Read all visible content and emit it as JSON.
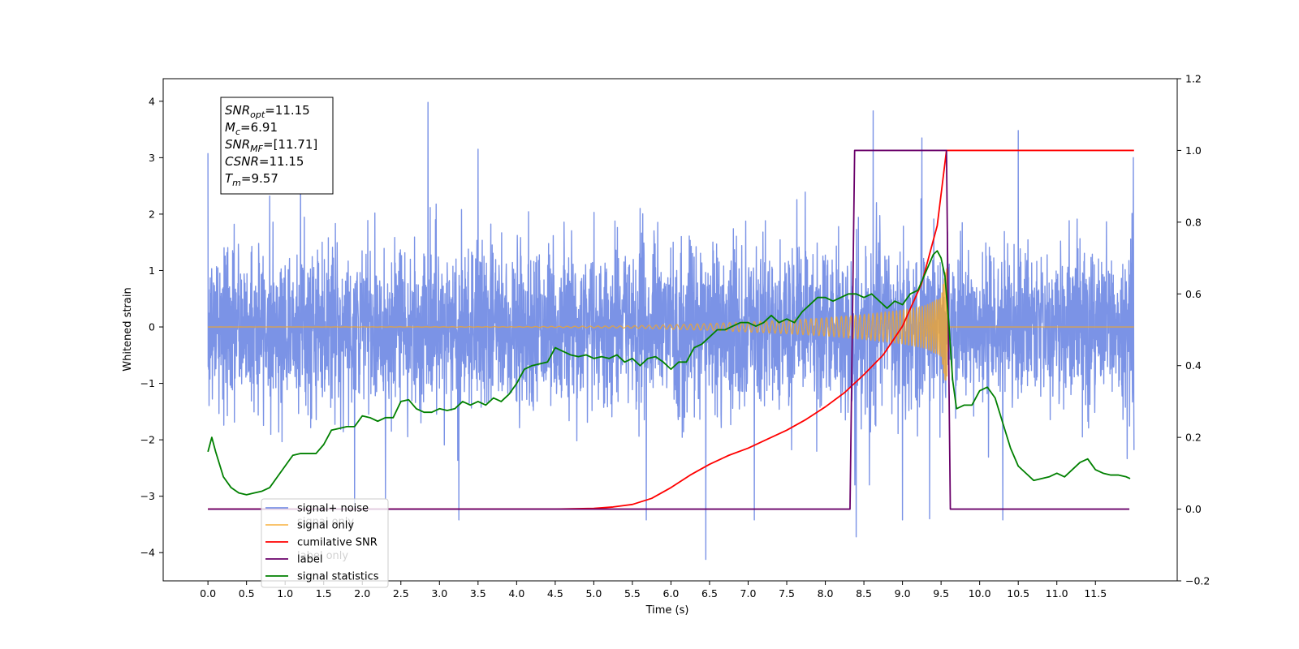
{
  "chart_data": {
    "type": "line",
    "xlabel": "Time (s)",
    "ylabel": "Whitened strain",
    "xlim": [
      -0.58,
      12.56
    ],
    "ylim_left": [
      -4.5,
      4.4
    ],
    "ylim_right": [
      -0.2,
      1.2
    ],
    "x_ticks": [
      0.0,
      0.5,
      1.0,
      1.5,
      2.0,
      2.5,
      3.0,
      3.5,
      4.0,
      4.5,
      5.0,
      5.5,
      6.0,
      6.5,
      7.0,
      7.5,
      8.0,
      8.5,
      9.0,
      9.5,
      10.0,
      10.5,
      11.0,
      11.5
    ],
    "x_tick_labels": [
      "0.0",
      "0.5",
      "1.0",
      "1.5",
      "2.0",
      "2.5",
      "3.0",
      "3.5",
      "4.0",
      "4.5",
      "5.0",
      "5.5",
      "6.0",
      "6.5",
      "7.0",
      "7.5",
      "8.0",
      "8.5",
      "9.0",
      "9.5",
      "10.0",
      "10.5",
      "11.0",
      "11.5"
    ],
    "y_ticks_left": [
      4,
      3,
      2,
      1,
      0,
      -1,
      -2,
      -3,
      -4
    ],
    "y_tick_labels_left": [
      "4",
      "3",
      "2",
      "1",
      "0",
      "−1",
      "−2",
      "−3",
      "−4"
    ],
    "y_ticks_right": [
      1.2,
      1.0,
      0.8,
      0.6,
      0.4,
      0.2,
      0.0,
      -0.2
    ],
    "y_tick_labels_right": [
      "1.2",
      "1.0",
      "0.8",
      "0.6",
      "0.4",
      "0.2",
      "0.0",
      "−0.2"
    ],
    "grid": false,
    "legend_placement": "lower-left",
    "annotation": {
      "lines": [
        {
          "base": "SNR",
          "sub": "opt",
          "value": "=11.15"
        },
        {
          "base": "M",
          "sub": "c",
          "value": "=6.91"
        },
        {
          "base": "SNR",
          "sub": "MF",
          "value": "=[11.71]"
        },
        {
          "base": "CSNR",
          "sub": "",
          "value": "=11.15"
        },
        {
          "base": "T",
          "sub": "m",
          "value": "=9.57"
        }
      ]
    },
    "series": [
      {
        "name": "signal+ noise",
        "axis": "left",
        "color": "#7b93e6",
        "kind": "noise",
        "x_range": [
          0.0,
          12.0
        ],
        "sigma": 0.72,
        "peaks": [
          {
            "x": 0.0,
            "y": 3.08
          },
          {
            "x": 2.85,
            "y": 3.98
          },
          {
            "x": 8.62,
            "y": 3.83
          },
          {
            "x": 10.5,
            "y": 3.48
          },
          {
            "x": 9.25,
            "y": 3.35
          },
          {
            "x": 11.99,
            "y": 3.0
          },
          {
            "x": 3.5,
            "y": 3.15
          },
          {
            "x": 1.2,
            "y": 2.95
          },
          {
            "x": 6.45,
            "y": -4.12
          },
          {
            "x": 8.4,
            "y": -3.72
          },
          {
            "x": 7.08,
            "y": -3.42
          },
          {
            "x": 10.3,
            "y": -3.42
          },
          {
            "x": 3.25,
            "y": -3.42
          },
          {
            "x": 9.0,
            "y": -3.42
          },
          {
            "x": 5.68,
            "y": -3.42
          },
          {
            "x": 9.35,
            "y": -3.4
          },
          {
            "x": 1.9,
            "y": -3.25
          },
          {
            "x": 2.3,
            "y": -3.05
          }
        ]
      },
      {
        "name": "signal only",
        "axis": "left",
        "color": "#f5a623",
        "kind": "chirp",
        "x_range": [
          0.0,
          12.0
        ],
        "merger_time": 9.57,
        "envelope_points": [
          [
            0.0,
            0.0
          ],
          [
            4.0,
            0.005
          ],
          [
            5.5,
            0.02
          ],
          [
            6.5,
            0.06
          ],
          [
            7.5,
            0.12
          ],
          [
            8.0,
            0.16
          ],
          [
            8.5,
            0.22
          ],
          [
            9.0,
            0.3
          ],
          [
            9.3,
            0.38
          ],
          [
            9.5,
            0.52
          ],
          [
            9.57,
            1.1
          ],
          [
            9.6,
            0.0
          ],
          [
            12.0,
            0.0
          ]
        ]
      },
      {
        "name": "cumilative SNR",
        "axis": "right",
        "color": "#ff0000",
        "x": [
          0.0,
          4.0,
          4.5,
          5.0,
          5.25,
          5.5,
          5.75,
          6.0,
          6.25,
          6.5,
          6.75,
          7.0,
          7.25,
          7.5,
          7.75,
          8.0,
          8.25,
          8.5,
          8.75,
          9.0,
          9.25,
          9.45,
          9.57,
          12.0
        ],
        "values": [
          0.0,
          0.0,
          0.0,
          0.002,
          0.006,
          0.013,
          0.03,
          0.06,
          0.095,
          0.125,
          0.15,
          0.17,
          0.195,
          0.22,
          0.25,
          0.285,
          0.325,
          0.375,
          0.43,
          0.51,
          0.63,
          0.79,
          1.0,
          1.0
        ]
      },
      {
        "name": "label",
        "axis": "right",
        "color": "#6a006a",
        "x": [
          0.0,
          8.32,
          8.38,
          9.57,
          9.62,
          11.94
        ],
        "values": [
          0.0,
          0.0,
          1.0,
          1.0,
          0.0,
          0.0
        ]
      },
      {
        "name": "signal statistics",
        "axis": "right",
        "color": "#008000",
        "x": [
          0.0,
          0.05,
          0.1,
          0.2,
          0.3,
          0.4,
          0.5,
          0.6,
          0.7,
          0.8,
          0.9,
          1.0,
          1.1,
          1.2,
          1.3,
          1.4,
          1.5,
          1.6,
          1.7,
          1.8,
          1.9,
          2.0,
          2.1,
          2.2,
          2.3,
          2.4,
          2.5,
          2.6,
          2.7,
          2.8,
          2.9,
          3.0,
          3.1,
          3.2,
          3.3,
          3.4,
          3.5,
          3.6,
          3.7,
          3.8,
          3.9,
          4.0,
          4.1,
          4.2,
          4.3,
          4.4,
          4.5,
          4.6,
          4.7,
          4.8,
          4.9,
          5.0,
          5.1,
          5.2,
          5.3,
          5.4,
          5.5,
          5.6,
          5.7,
          5.8,
          5.9,
          6.0,
          6.1,
          6.2,
          6.3,
          6.4,
          6.5,
          6.6,
          6.7,
          6.8,
          6.9,
          7.0,
          7.1,
          7.2,
          7.3,
          7.4,
          7.5,
          7.6,
          7.7,
          7.8,
          7.9,
          8.0,
          8.1,
          8.2,
          8.3,
          8.4,
          8.5,
          8.6,
          8.7,
          8.8,
          8.9,
          9.0,
          9.1,
          9.2,
          9.3,
          9.4,
          9.45,
          9.5,
          9.55,
          9.6,
          9.65,
          9.7,
          9.8,
          9.9,
          10.0,
          10.1,
          10.2,
          10.3,
          10.4,
          10.5,
          10.6,
          10.7,
          10.8,
          10.9,
          11.0,
          11.1,
          11.2,
          11.3,
          11.4,
          11.5,
          11.6,
          11.7,
          11.8,
          11.9,
          11.95
        ],
        "values": [
          0.16,
          0.2,
          0.16,
          0.09,
          0.06,
          0.045,
          0.04,
          0.045,
          0.05,
          0.06,
          0.09,
          0.12,
          0.15,
          0.155,
          0.155,
          0.155,
          0.18,
          0.22,
          0.225,
          0.23,
          0.23,
          0.26,
          0.255,
          0.245,
          0.255,
          0.255,
          0.3,
          0.305,
          0.28,
          0.27,
          0.27,
          0.28,
          0.275,
          0.28,
          0.3,
          0.29,
          0.3,
          0.29,
          0.31,
          0.3,
          0.32,
          0.35,
          0.39,
          0.4,
          0.405,
          0.41,
          0.45,
          0.44,
          0.43,
          0.425,
          0.43,
          0.42,
          0.425,
          0.42,
          0.43,
          0.41,
          0.42,
          0.4,
          0.42,
          0.425,
          0.41,
          0.39,
          0.41,
          0.41,
          0.45,
          0.46,
          0.48,
          0.5,
          0.5,
          0.51,
          0.52,
          0.52,
          0.51,
          0.52,
          0.54,
          0.52,
          0.53,
          0.52,
          0.55,
          0.57,
          0.59,
          0.59,
          0.58,
          0.59,
          0.6,
          0.6,
          0.59,
          0.6,
          0.58,
          0.56,
          0.58,
          0.57,
          0.6,
          0.61,
          0.66,
          0.71,
          0.72,
          0.7,
          0.65,
          0.52,
          0.36,
          0.28,
          0.29,
          0.29,
          0.33,
          0.34,
          0.31,
          0.24,
          0.17,
          0.12,
          0.1,
          0.08,
          0.085,
          0.09,
          0.1,
          0.09,
          0.11,
          0.13,
          0.14,
          0.11,
          0.1,
          0.095,
          0.095,
          0.09,
          0.085
        ]
      }
    ],
    "legend_ghost_text": [
      "signal only",
      "label only"
    ]
  }
}
